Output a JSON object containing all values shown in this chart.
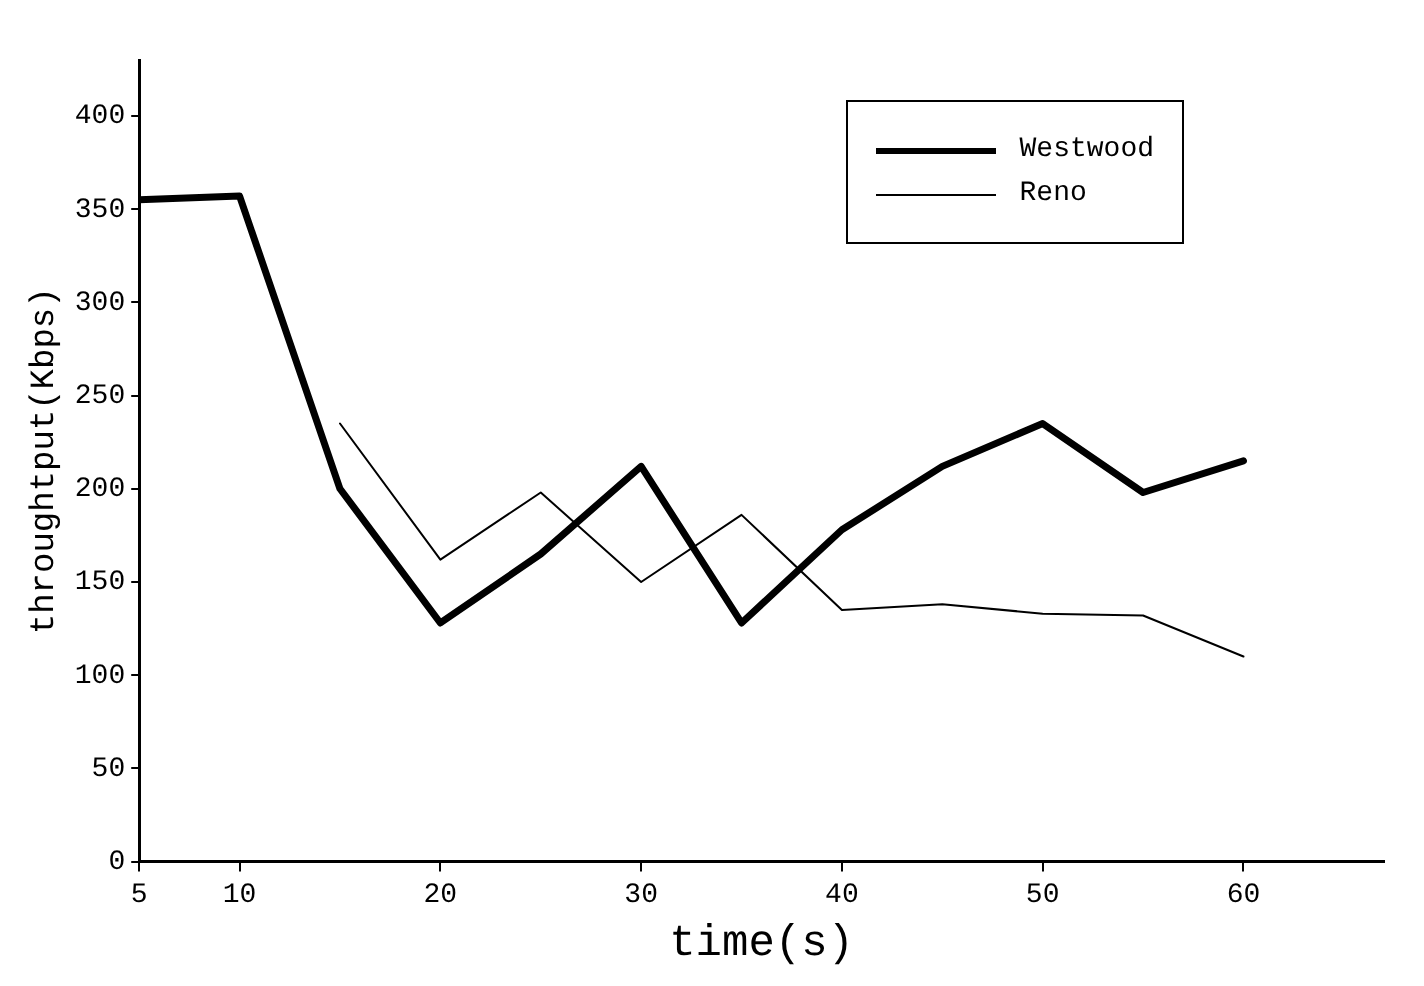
{
  "chart_data": {
    "type": "line",
    "xlabel": "time(s)",
    "ylabel": "throughtput(Kbps)",
    "x": [
      5,
      10,
      15,
      20,
      25,
      30,
      35,
      40,
      45,
      50,
      55,
      60
    ],
    "series": [
      {
        "name": "Westwood",
        "color": "#000000",
        "values": [
          355,
          357,
          200,
          128,
          165,
          212,
          128,
          178,
          212,
          235,
          198,
          215
        ]
      },
      {
        "name": "Reno",
        "color": "#000000",
        "values": [
          null,
          null,
          235,
          162,
          198,
          150,
          186,
          135,
          138,
          133,
          132,
          110
        ]
      }
    ],
    "xlim": [
      5,
      67
    ],
    "xticks": [
      5,
      10,
      20,
      30,
      40,
      50,
      60
    ],
    "ylim": [
      0,
      430
    ],
    "yticks": [
      0,
      50,
      100,
      150,
      200,
      250,
      300,
      350,
      400
    ],
    "grid": false,
    "legend": "top right",
    "marker": "none",
    "line_style": "solid"
  }
}
